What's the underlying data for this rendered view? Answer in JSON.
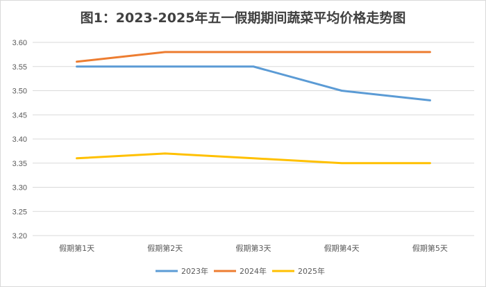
{
  "chart_data": {
    "type": "line",
    "title": "图1：2023-2025年五一假期期间蔬菜平均价格走势图",
    "xlabel": "",
    "ylabel": "",
    "categories": [
      "假期第1天",
      "假期第2天",
      "假期第3天",
      "假期第4天",
      "假期第5天"
    ],
    "ylim": [
      3.2,
      3.6
    ],
    "ytick_step": 0.05,
    "ytick_labels": [
      "3.20",
      "3.25",
      "3.30",
      "3.35",
      "3.40",
      "3.45",
      "3.50",
      "3.55",
      "3.60"
    ],
    "grid": "horizontal",
    "legend_position": "bottom",
    "series": [
      {
        "name": "2023年",
        "color": "#5B9BD5",
        "values": [
          3.55,
          3.55,
          3.55,
          3.5,
          3.48
        ]
      },
      {
        "name": "2024年",
        "color": "#ED7D31",
        "values": [
          3.56,
          3.58,
          3.58,
          3.58,
          3.58
        ]
      },
      {
        "name": "2025年",
        "color": "#FFC000",
        "values": [
          3.36,
          3.37,
          3.36,
          3.35,
          3.35
        ]
      }
    ]
  }
}
